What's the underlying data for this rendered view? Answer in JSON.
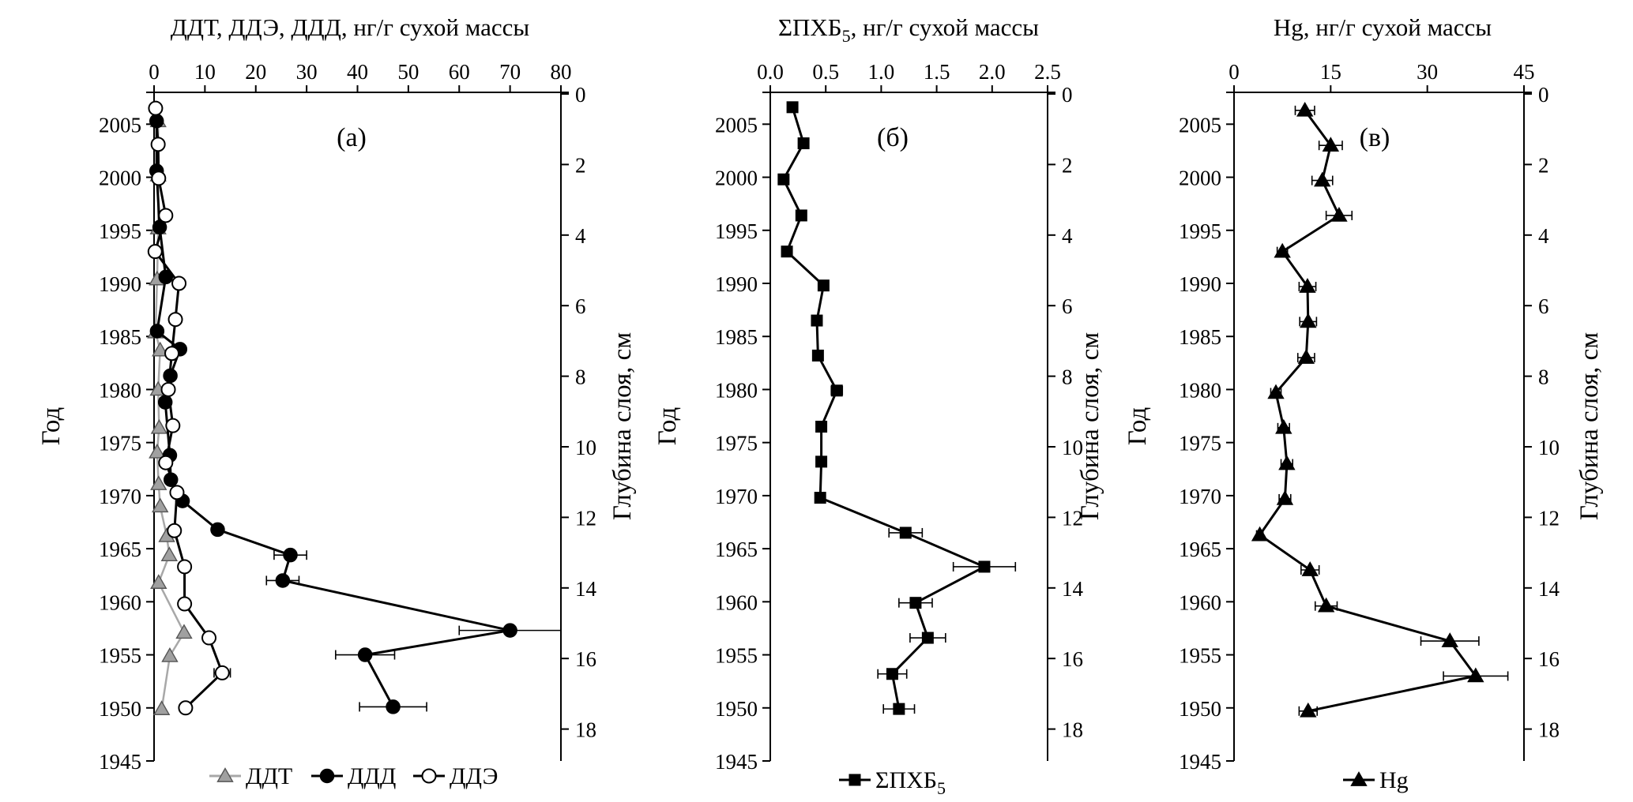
{
  "panels": [
    {
      "id": "a",
      "panel_label": "(а)",
      "title_parts": [
        {
          "t": "ДДТ, ДДЭ, ДДД, нг/г сухой массы"
        }
      ],
      "x_ticks": [
        "0",
        "10",
        "20",
        "30",
        "40",
        "50",
        "60",
        "70",
        "80"
      ],
      "y_left_label": "Год",
      "y_right_label": "Глубина слоя, см",
      "legend": [
        {
          "key": "ddt",
          "label": "ДДТ"
        },
        {
          "key": "ddd",
          "label": "ДДД"
        },
        {
          "key": "dde",
          "label": "ДДЭ"
        }
      ]
    },
    {
      "id": "b",
      "panel_label": "(б)",
      "title_parts": [
        {
          "t": "ΣПХБ"
        },
        {
          "t": "5",
          "sub": true
        },
        {
          "t": ", нг/г сухой массы"
        }
      ],
      "x_ticks": [
        "0.0",
        "0.5",
        "1.0",
        "1.5",
        "2.0",
        "2.5"
      ],
      "y_left_label": "Год",
      "y_right_label": "Глубина слоя, см",
      "legend": [
        {
          "key": "pcb",
          "label": "ΣПХБ",
          "sub": "5"
        }
      ]
    },
    {
      "id": "c",
      "panel_label": "(в)",
      "title_parts": [
        {
          "t": "Hg, нг/г сухой массы"
        }
      ],
      "x_ticks": [
        "0",
        "15",
        "30",
        "45"
      ],
      "y_left_label": "Год",
      "y_right_label": "Глубина слоя, см",
      "legend": [
        {
          "key": "hg",
          "label": "Hg"
        }
      ]
    }
  ],
  "year_ticks": [
    "2005",
    "2000",
    "1995",
    "1990",
    "1985",
    "1980",
    "1975",
    "1970",
    "1965",
    "1960",
    "1955",
    "1950",
    "1945"
  ],
  "depth_ticks": [
    "0",
    "2",
    "4",
    "6",
    "8",
    "10",
    "12",
    "14",
    "16",
    "18"
  ],
  "chart_data": [
    {
      "type": "line",
      "panel": "a",
      "x_axis": "concentration (ng/g dry mass)",
      "xlim": [
        0,
        80
      ],
      "ylim_year": [
        1945,
        2008
      ],
      "ylim_depth": [
        0,
        19
      ],
      "series": [
        {
          "name": "ДДТ",
          "key": "ddt",
          "marker": "triangle",
          "color": "#9b9b9b",
          "points": [
            {
              "year": 2005.3,
              "value": 0.8
            },
            {
              "year": 2000.2,
              "value": 0.8
            },
            {
              "year": 1995.2,
              "value": 0.8
            },
            {
              "year": 1990.4,
              "value": 0.6
            },
            {
              "year": 1985.4,
              "value": 0.3
            },
            {
              "year": 1983.7,
              "value": 1.2
            },
            {
              "year": 1980.0,
              "value": 0.8
            },
            {
              "year": 1976.4,
              "value": 1.0
            },
            {
              "year": 1974.1,
              "value": 0.6
            },
            {
              "year": 1971.1,
              "value": 0.9
            },
            {
              "year": 1969.0,
              "value": 1.2
            },
            {
              "year": 1966.2,
              "value": 2.5
            },
            {
              "year": 1964.4,
              "value": 3.0
            },
            {
              "year": 1961.8,
              "value": 0.9
            },
            {
              "year": 1957.1,
              "value": 5.9
            },
            {
              "year": 1954.9,
              "value": 3.1
            },
            {
              "year": 1949.9,
              "value": 1.5
            }
          ]
        },
        {
          "name": "ДДД",
          "key": "ddd",
          "marker": "circle-filled",
          "color": "#000000",
          "points": [
            {
              "year": 2005.3,
              "value": 0.5
            },
            {
              "year": 2000.6,
              "value": 0.5
            },
            {
              "year": 1995.3,
              "value": 1.1
            },
            {
              "year": 1990.6,
              "value": 2.3
            },
            {
              "year": 1985.5,
              "value": 0.6
            },
            {
              "year": 1983.8,
              "value": 5.1
            },
            {
              "year": 1981.3,
              "value": 3.2
            },
            {
              "year": 1978.8,
              "value": 2.2
            },
            {
              "year": 1973.8,
              "value": 3.1
            },
            {
              "year": 1971.5,
              "value": 3.3
            },
            {
              "year": 1969.5,
              "value": 5.6
            },
            {
              "year": 1966.8,
              "value": 12.5
            },
            {
              "year": 1964.4,
              "value": 26.8,
              "err": 3.2
            },
            {
              "year": 1962.0,
              "value": 25.3,
              "err": 3.2
            },
            {
              "year": 1957.3,
              "value": 70.0,
              "err": 10.0
            },
            {
              "year": 1955.0,
              "value": 41.5,
              "err": 5.8
            },
            {
              "year": 1950.1,
              "value": 47.0,
              "err": 6.6
            }
          ]
        },
        {
          "name": "ДДЭ",
          "key": "dde",
          "marker": "circle-open",
          "color": "#000000",
          "points": [
            {
              "year": 2006.5,
              "value": 0.3
            },
            {
              "year": 2003.1,
              "value": 0.8
            },
            {
              "year": 1999.9,
              "value": 0.9
            },
            {
              "year": 1996.4,
              "value": 2.3
            },
            {
              "year": 1993.0,
              "value": 0.2
            },
            {
              "year": 1990.0,
              "value": 4.9
            },
            {
              "year": 1986.6,
              "value": 4.2
            },
            {
              "year": 1983.4,
              "value": 3.5
            },
            {
              "year": 1980.0,
              "value": 2.8
            },
            {
              "year": 1976.6,
              "value": 3.7
            },
            {
              "year": 1973.1,
              "value": 2.3
            },
            {
              "year": 1970.3,
              "value": 4.5
            },
            {
              "year": 1966.7,
              "value": 4.0
            },
            {
              "year": 1963.3,
              "value": 6.0
            },
            {
              "year": 1959.8,
              "value": 6.0
            },
            {
              "year": 1956.6,
              "value": 10.8
            },
            {
              "year": 1953.3,
              "value": 13.4,
              "err": 1.6
            },
            {
              "year": 1950.0,
              "value": 6.2
            }
          ]
        }
      ]
    },
    {
      "type": "line",
      "panel": "b",
      "x_axis": "ΣPCB5 (ng/g dry mass)",
      "xlim": [
        0,
        2.5
      ],
      "ylim_year": [
        1945,
        2008
      ],
      "ylim_depth": [
        0,
        19
      ],
      "series": [
        {
          "name": "ΣПХБ5",
          "key": "pcb",
          "marker": "square",
          "color": "#000000",
          "points": [
            {
              "year": 2006.6,
              "value": 0.2
            },
            {
              "year": 2003.2,
              "value": 0.3
            },
            {
              "year": 1999.8,
              "value": 0.12
            },
            {
              "year": 1996.4,
              "value": 0.28
            },
            {
              "year": 1993.0,
              "value": 0.15
            },
            {
              "year": 1989.8,
              "value": 0.48,
              "err": 0.04
            },
            {
              "year": 1986.5,
              "value": 0.42
            },
            {
              "year": 1983.2,
              "value": 0.43
            },
            {
              "year": 1979.9,
              "value": 0.6,
              "err": 0.05
            },
            {
              "year": 1976.5,
              "value": 0.46
            },
            {
              "year": 1973.2,
              "value": 0.46
            },
            {
              "year": 1969.8,
              "value": 0.45
            },
            {
              "year": 1966.5,
              "value": 1.22,
              "err": 0.15
            },
            {
              "year": 1963.3,
              "value": 1.93,
              "err": 0.28
            },
            {
              "year": 1959.9,
              "value": 1.31,
              "err": 0.15
            },
            {
              "year": 1956.6,
              "value": 1.42,
              "err": 0.16
            },
            {
              "year": 1953.2,
              "value": 1.1,
              "err": 0.13
            },
            {
              "year": 1949.9,
              "value": 1.16,
              "err": 0.14
            }
          ]
        }
      ]
    },
    {
      "type": "line",
      "panel": "c",
      "x_axis": "Hg (ng/g dry mass)",
      "xlim": [
        0,
        45
      ],
      "ylim_year": [
        1945,
        2008
      ],
      "ylim_depth": [
        0,
        19
      ],
      "series": [
        {
          "name": "Hg",
          "key": "hg",
          "marker": "triangle",
          "color": "#000000",
          "points": [
            {
              "year": 2006.3,
              "value": 11.0,
              "err": 1.5
            },
            {
              "year": 2003.0,
              "value": 15.0,
              "err": 1.8
            },
            {
              "year": 1999.7,
              "value": 13.7,
              "err": 1.6
            },
            {
              "year": 1996.4,
              "value": 16.3,
              "err": 2.0
            },
            {
              "year": 1993.0,
              "value": 7.5,
              "err": 0.8
            },
            {
              "year": 1989.7,
              "value": 11.4,
              "err": 1.3
            },
            {
              "year": 1986.4,
              "value": 11.5,
              "err": 1.3
            },
            {
              "year": 1983.0,
              "value": 11.2,
              "err": 1.3
            },
            {
              "year": 1979.7,
              "value": 6.5,
              "err": 0.8
            },
            {
              "year": 1976.4,
              "value": 7.7,
              "err": 0.9
            },
            {
              "year": 1973.0,
              "value": 8.2,
              "err": 0.9
            },
            {
              "year": 1969.7,
              "value": 7.9,
              "err": 0.9
            },
            {
              "year": 1966.3,
              "value": 4.0,
              "err": 0.5
            },
            {
              "year": 1963.0,
              "value": 11.8,
              "err": 1.4
            },
            {
              "year": 1959.6,
              "value": 14.3,
              "err": 1.7
            },
            {
              "year": 1956.3,
              "value": 33.5,
              "err": 4.5
            },
            {
              "year": 1953.0,
              "value": 37.5,
              "err": 5.0
            },
            {
              "year": 1949.7,
              "value": 11.5,
              "err": 1.4
            }
          ]
        }
      ]
    }
  ]
}
